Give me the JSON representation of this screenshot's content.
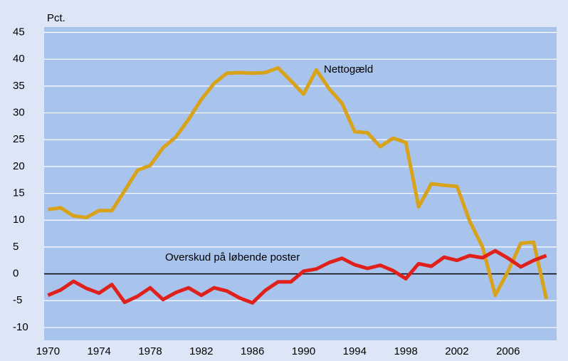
{
  "chart_data": {
    "type": "line",
    "y_label": "Pct.",
    "x": [
      1970,
      1971,
      1972,
      1973,
      1974,
      1975,
      1976,
      1977,
      1978,
      1979,
      1980,
      1981,
      1982,
      1983,
      1984,
      1985,
      1986,
      1987,
      1988,
      1989,
      1990,
      1991,
      1992,
      1993,
      1994,
      1995,
      1996,
      1997,
      1998,
      1999,
      2000,
      2001,
      2002,
      2003,
      2004,
      2005,
      2006,
      2007,
      2008,
      2009
    ],
    "series": [
      {
        "name": "Nettogæld",
        "color": "#d9a21b",
        "values": [
          12,
          12.3,
          10.8,
          10.5,
          11.8,
          11.8,
          15.5,
          19.3,
          20.2,
          23.5,
          25.5,
          28.8,
          32.5,
          35.5,
          37.4,
          37.5,
          37.4,
          37.5,
          38.4,
          36,
          33.5,
          38,
          34.5,
          31.8,
          26.5,
          26.3,
          23.7,
          25.3,
          24.5,
          12.5,
          16.8,
          16.5,
          16.3,
          9.8,
          5,
          -4,
          0.5,
          5.7,
          5.9,
          -4.7
        ]
      },
      {
        "name": "Overskud på løbende poster",
        "color": "#e0201b",
        "values": [
          -4,
          -3,
          -1.4,
          -2.7,
          -3.6,
          -2,
          -5.3,
          -4.2,
          -2.6,
          -4.8,
          -3.5,
          -2.6,
          -4,
          -2.6,
          -3.2,
          -4.5,
          -5.4,
          -3.1,
          -1.5,
          -1.5,
          0.5,
          0.9,
          2.1,
          2.9,
          1.7,
          1,
          1.6,
          0.6,
          -0.9,
          1.9,
          1.4,
          3.1,
          2.5,
          3.4,
          3,
          4.3,
          2.9,
          1.3,
          2.5,
          3.4
        ]
      }
    ],
    "xlim": [
      1969.7,
      2009.8
    ],
    "xticks": [
      1970,
      1974,
      1978,
      1982,
      1986,
      1990,
      1994,
      1998,
      2002,
      2006
    ],
    "ylim": [
      -12.4,
      46
    ],
    "yticks": [
      -10,
      -5,
      0,
      5,
      10,
      15,
      20,
      25,
      30,
      35,
      40,
      45
    ],
    "grid": true
  }
}
